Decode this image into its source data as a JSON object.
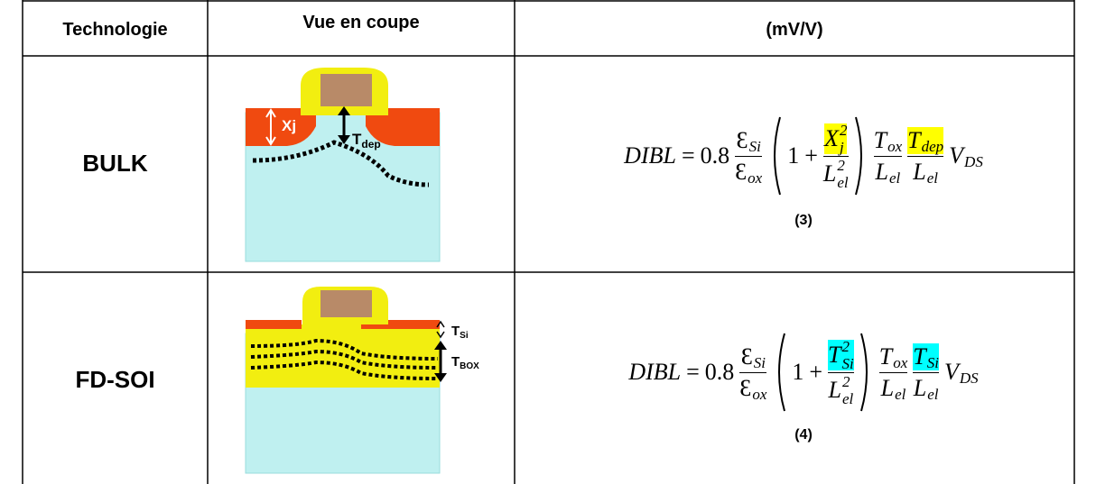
{
  "table": {
    "header": [
      "Technologie",
      "Vue en coupe",
      "(mV/V)"
    ],
    "rows": [
      {
        "technology": "BULK",
        "diagram_labels": [
          {
            "base": "Xj"
          },
          {
            "base": "T",
            "sub": "dep"
          }
        ],
        "highlight_color": "#ffff00",
        "formula": {
          "lhs": "DIBL",
          "eq": "=",
          "coef": "0.8",
          "f1": {
            "num": {
              "base": "Ɛ",
              "sub": "Si"
            },
            "den": {
              "base": "Ɛ",
              "sub": "ox"
            }
          },
          "one": "1",
          "plus": "+",
          "p": {
            "num": {
              "base": "X",
              "sub": "j",
              "sup": "2"
            },
            "den": {
              "base": "L",
              "sub": "el",
              "sup": "2"
            }
          },
          "f2": {
            "num": {
              "base": "T",
              "sub": "ox"
            },
            "den": {
              "base": "L",
              "sub": "el"
            }
          },
          "f3": {
            "num": {
              "base": "T",
              "sub": "dep"
            },
            "den": {
              "base": "L",
              "sub": "el"
            }
          },
          "tail": {
            "base": "V",
            "sub": "DS"
          }
        },
        "equation_number": "(3)"
      },
      {
        "technology": "FD-SOI",
        "diagram_labels": [
          {
            "base": "T",
            "sub": "Si"
          },
          {
            "base": "T",
            "sub": "BOX"
          }
        ],
        "highlight_color": "#00ffff",
        "formula": {
          "lhs": "DIBL",
          "eq": "=",
          "coef": "0.8",
          "f1": {
            "num": {
              "base": "Ɛ",
              "sub": "Si"
            },
            "den": {
              "base": "Ɛ",
              "sub": "ox"
            }
          },
          "one": "1",
          "plus": "+",
          "p": {
            "num": {
              "base": "T",
              "sub": "Si",
              "sup": "2"
            },
            "den": {
              "base": "L",
              "sub": "el",
              "sup": "2"
            }
          },
          "f2": {
            "num": {
              "base": "T",
              "sub": "ox"
            },
            "den": {
              "base": "L",
              "sub": "el"
            }
          },
          "f3": {
            "num": {
              "base": "T",
              "sub": "Si"
            },
            "den": {
              "base": "L",
              "sub": "el"
            }
          },
          "tail": {
            "base": "V",
            "sub": "DS"
          }
        },
        "equation_number": "(4)"
      }
    ]
  }
}
